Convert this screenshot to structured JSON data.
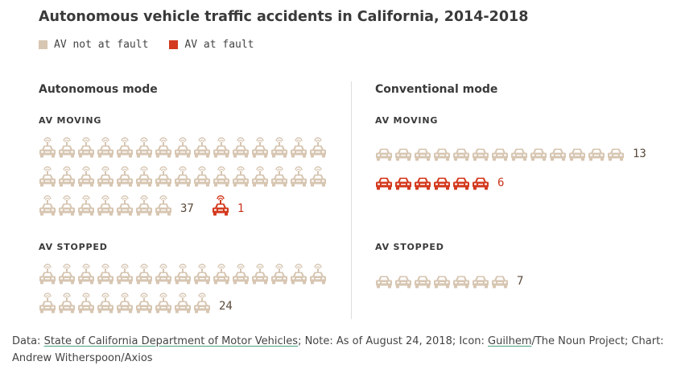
{
  "title": "Autonomous vehicle traffic accidents in California, 2014-2018",
  "colors": {
    "not_at_fault": "#d7c6b2",
    "at_fault": "#d33a1e"
  },
  "legend": [
    {
      "label": "AV not at fault",
      "color": "#d7c6b2"
    },
    {
      "label": "AV at fault",
      "color": "#d33a1e"
    }
  ],
  "sections": {
    "autonomous": {
      "title": "Autonomous mode"
    },
    "conventional": {
      "title": "Conventional mode"
    }
  },
  "labels": {
    "moving": "AV MOVING",
    "stopped": "AV STOPPED"
  },
  "chart_data": {
    "type": "pictogram",
    "title": "Autonomous vehicle traffic accidents in California, 2014-2018",
    "series_names": [
      "AV not at fault",
      "AV at fault"
    ],
    "panels": [
      {
        "mode": "Autonomous mode",
        "state": "AV MOVING",
        "not_at_fault": 37,
        "at_fault": 1,
        "icon": "autonomous-car-icon"
      },
      {
        "mode": "Autonomous mode",
        "state": "AV STOPPED",
        "not_at_fault": 24,
        "at_fault": 0,
        "icon": "autonomous-car-icon"
      },
      {
        "mode": "Conventional mode",
        "state": "AV MOVING",
        "not_at_fault": 13,
        "at_fault": 6,
        "icon": "car-icon"
      },
      {
        "mode": "Conventional mode",
        "state": "AV STOPPED",
        "not_at_fault": 7,
        "at_fault": 0,
        "icon": "car-icon"
      }
    ]
  },
  "footer": {
    "prefix": "Data: ",
    "source_link": "State of California Department of Motor Vehicles",
    "note": "; Note: As of August 24, 2018; Icon: ",
    "icon_link": "Guilhem",
    "suffix": "/The Noun Project; Chart: Andrew Witherspoon/Axios"
  }
}
